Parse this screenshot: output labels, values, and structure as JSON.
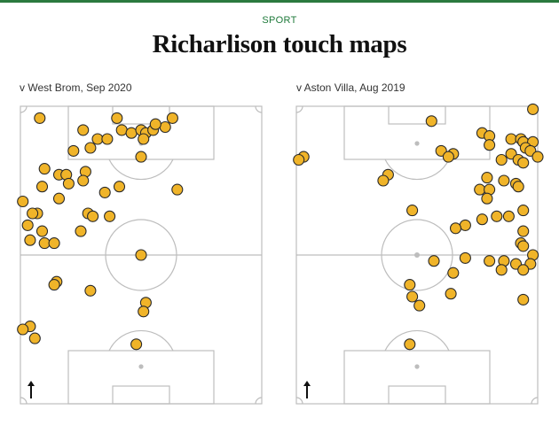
{
  "header": {
    "kicker": "SPORT",
    "title": "Richarlison touch maps"
  },
  "colors": {
    "accent": "#2b7a3f",
    "kicker": "#1f7a3b",
    "pitch_lines": "#bdbdbd",
    "marker_fill": "#f0b429",
    "marker_stroke": "#2a2a2a"
  },
  "chart_data": [
    {
      "type": "scatter",
      "title": "v West Brom, Sep 2020",
      "xlabel": "",
      "ylabel": "",
      "xlim": [
        0,
        100
      ],
      "ylim": [
        0,
        100
      ],
      "grid": false,
      "direction_arrow": "up",
      "series": [
        {
          "points": [
            [
              8,
              96
            ],
            [
              40,
              96
            ],
            [
              63,
              96
            ],
            [
              26,
              92
            ],
            [
              42,
              92
            ],
            [
              46,
              91
            ],
            [
              50,
              92
            ],
            [
              52,
              91
            ],
            [
              55,
              92
            ],
            [
              60,
              93
            ],
            [
              56,
              94
            ],
            [
              32,
              89
            ],
            [
              36,
              89
            ],
            [
              51,
              89
            ],
            [
              29,
              86
            ],
            [
              22,
              85
            ],
            [
              50,
              83
            ],
            [
              10,
              79
            ],
            [
              16,
              77
            ],
            [
              19,
              77
            ],
            [
              27,
              78
            ],
            [
              26,
              75
            ],
            [
              20,
              74
            ],
            [
              9,
              73
            ],
            [
              41,
              73
            ],
            [
              65,
              72
            ],
            [
              35,
              71
            ],
            [
              16,
              69
            ],
            [
              1,
              68
            ],
            [
              7,
              64
            ],
            [
              5,
              64
            ],
            [
              28,
              64
            ],
            [
              30,
              63
            ],
            [
              37,
              63
            ],
            [
              3,
              60
            ],
            [
              9,
              58
            ],
            [
              25,
              58
            ],
            [
              4,
              55
            ],
            [
              10,
              54
            ],
            [
              14,
              54
            ],
            [
              50,
              50
            ],
            [
              15,
              41
            ],
            [
              14,
              40
            ],
            [
              29,
              38
            ],
            [
              52,
              34
            ],
            [
              51,
              31
            ],
            [
              4,
              26
            ],
            [
              1,
              25
            ],
            [
              6,
              22
            ],
            [
              48,
              20
            ]
          ]
        }
      ]
    },
    {
      "type": "scatter",
      "title": "v Aston Villa, Aug 2019",
      "xlabel": "",
      "ylabel": "",
      "xlim": [
        0,
        100
      ],
      "ylim": [
        0,
        100
      ],
      "grid": false,
      "direction_arrow": "up",
      "series": [
        {
          "points": [
            [
              98,
              99
            ],
            [
              56,
              95
            ],
            [
              77,
              91
            ],
            [
              80,
              90
            ],
            [
              89,
              89
            ],
            [
              93,
              89
            ],
            [
              94,
              88
            ],
            [
              98,
              88
            ],
            [
              80,
              87
            ],
            [
              95,
              86
            ],
            [
              97,
              85
            ],
            [
              60,
              85
            ],
            [
              65,
              84
            ],
            [
              63,
              83
            ],
            [
              89,
              84
            ],
            [
              92,
              82
            ],
            [
              85,
              82
            ],
            [
              94,
              81
            ],
            [
              100,
              83
            ],
            [
              3,
              83
            ],
            [
              1,
              82
            ],
            [
              38,
              77
            ],
            [
              36,
              75
            ],
            [
              79,
              76
            ],
            [
              86,
              75
            ],
            [
              91,
              74
            ],
            [
              76,
              72
            ],
            [
              80,
              72
            ],
            [
              79,
              69
            ],
            [
              92,
              73
            ],
            [
              48,
              65
            ],
            [
              94,
              65
            ],
            [
              88,
              63
            ],
            [
              83,
              63
            ],
            [
              77,
              62
            ],
            [
              94,
              58
            ],
            [
              70,
              60
            ],
            [
              66,
              59
            ],
            [
              93,
              54
            ],
            [
              94,
              53
            ],
            [
              98,
              50
            ],
            [
              70,
              49
            ],
            [
              86,
              48
            ],
            [
              80,
              48
            ],
            [
              57,
              48
            ],
            [
              97,
              47
            ],
            [
              91,
              47
            ],
            [
              85,
              45
            ],
            [
              94,
              45
            ],
            [
              65,
              44
            ],
            [
              64,
              37
            ],
            [
              51,
              33
            ],
            [
              47,
              40
            ],
            [
              48,
              36
            ],
            [
              94,
              35
            ],
            [
              47,
              20
            ]
          ]
        }
      ]
    }
  ]
}
